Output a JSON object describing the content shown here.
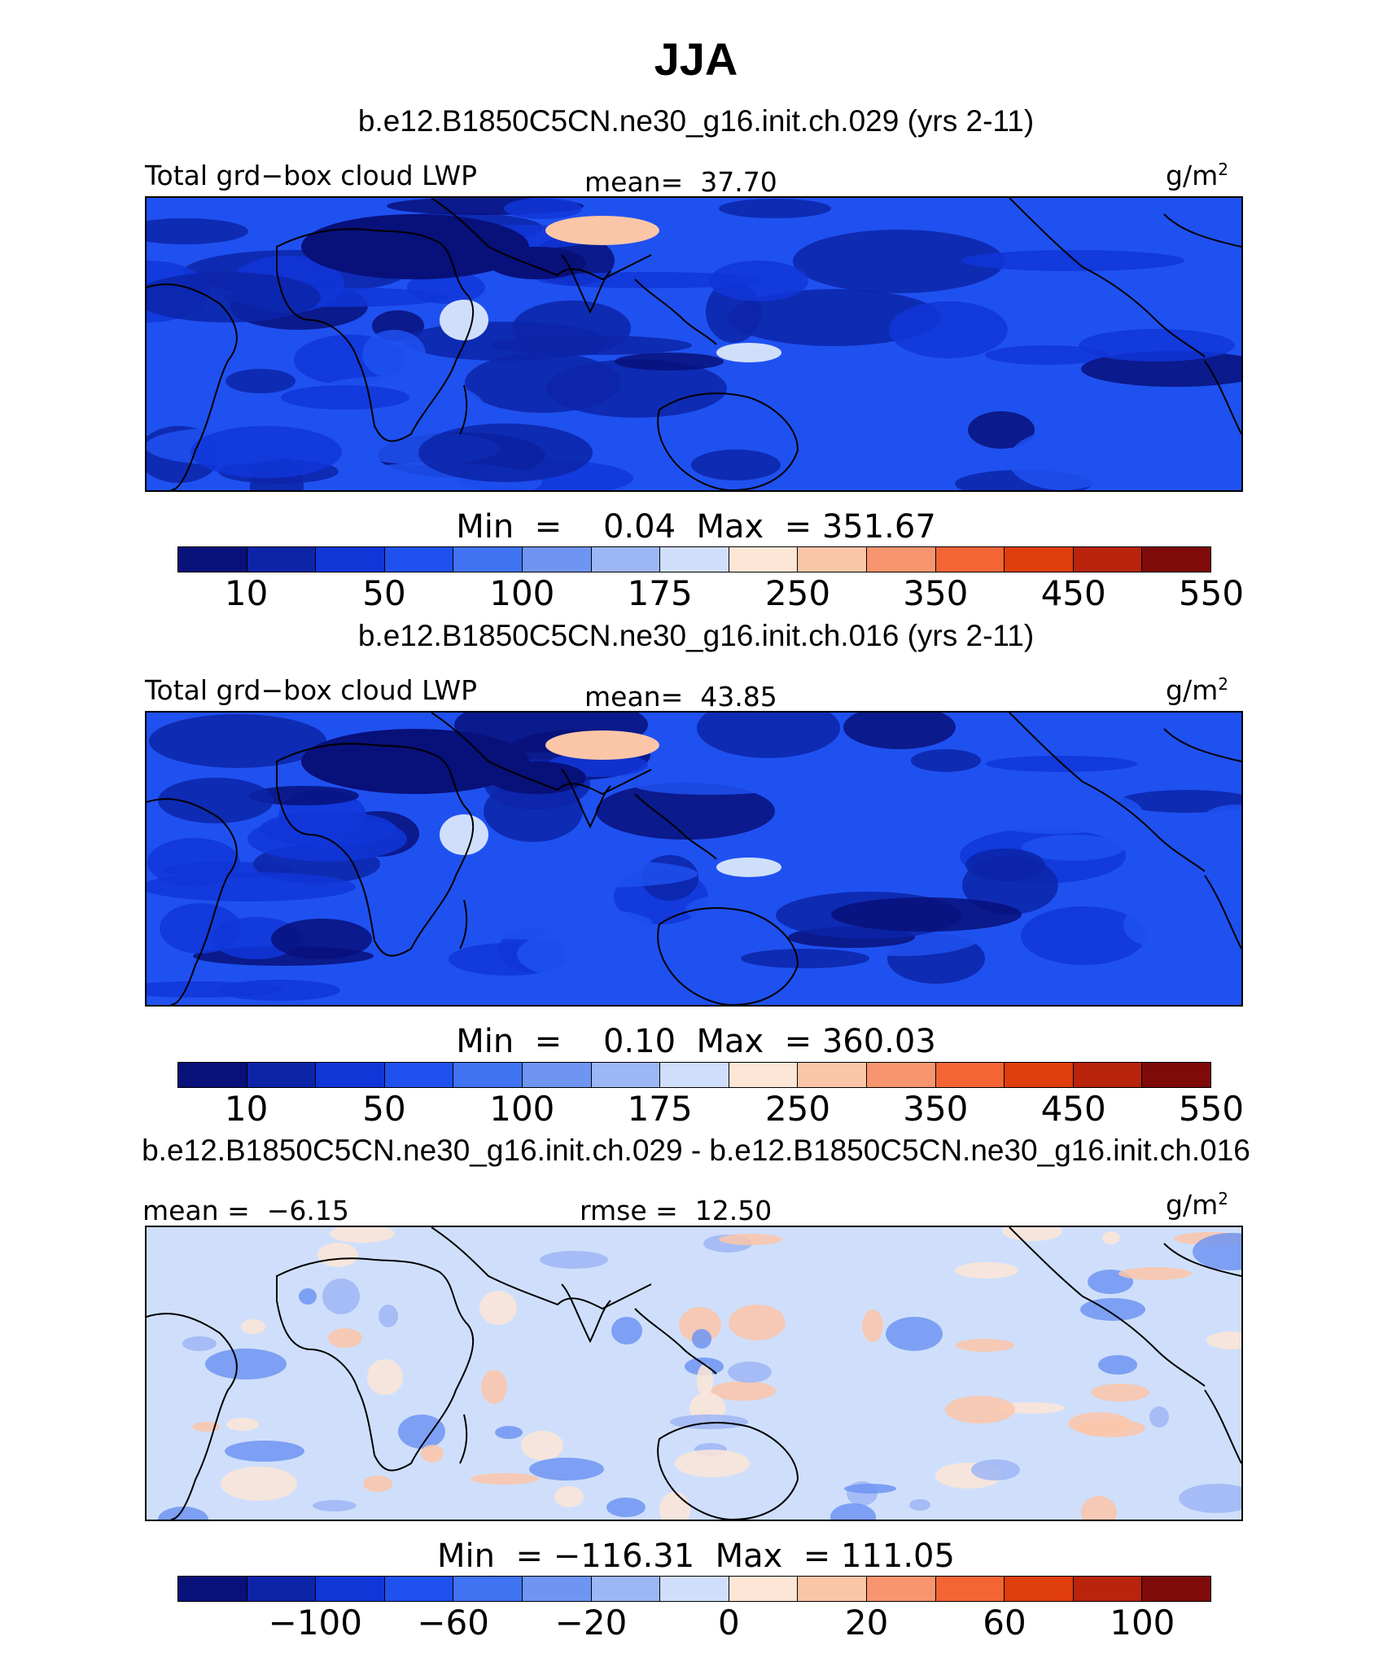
{
  "title": "JJA",
  "colors": {
    "full_field": [
      "#08107a",
      "#0c25a8",
      "#1136d8",
      "#1f51f0",
      "#3f73f2",
      "#6f95f2",
      "#9db6f5",
      "#cfdffb",
      "#fde6d6",
      "#fbc6a8",
      "#f8956e",
      "#f46536",
      "#e03e0a",
      "#b8240c",
      "#7e0a0a"
    ],
    "diff_field": [
      "#08107a",
      "#0c25a8",
      "#1136d8",
      "#1f51f0",
      "#3f73f2",
      "#6f95f2",
      "#9db6f5",
      "#cfdffb",
      "#fde6d6",
      "#fbc6a8",
      "#f8956e",
      "#f46536",
      "#e03e0a",
      "#b8240c",
      "#7e0a0a"
    ],
    "coastline": "#000000"
  },
  "panels": [
    {
      "case": "b.e12.B1850C5CN.ne30_g16.init.ch.029 (yrs 2-11)",
      "variable": "Total grd−box cloud LWP",
      "stat_label": "mean=",
      "stat_value": "37.70",
      "units": "g/m",
      "units_sup": "2",
      "min_label": "Min  =",
      "min_value": "0.04",
      "max_label": "Max  =",
      "max_value": "351.67",
      "colorbar_ticks": [
        "10",
        "50",
        "100",
        "175",
        "250",
        "350",
        "450",
        "550"
      ],
      "ocean_fill": "#1f51f0"
    },
    {
      "case": "b.e12.B1850C5CN.ne30_g16.init.ch.016 (yrs 2-11)",
      "variable": "Total grd−box cloud LWP",
      "stat_label": "mean=",
      "stat_value": "43.85",
      "units": "g/m",
      "units_sup": "2",
      "min_label": "Min  =",
      "min_value": "0.10",
      "max_label": "Max  =",
      "max_value": "360.03",
      "colorbar_ticks": [
        "10",
        "50",
        "100",
        "175",
        "250",
        "350",
        "450",
        "550"
      ],
      "ocean_fill": "#1f51f0"
    },
    {
      "case": "b.e12.B1850C5CN.ne30_g16.init.ch.029 - b.e12.B1850C5CN.ne30_g16.init.ch.016",
      "mean_label": "mean =",
      "mean_value": "−6.15",
      "rmse_label": "rmse =",
      "rmse_value": "12.50",
      "units": "g/m",
      "units_sup": "2",
      "min_label": "Min  =",
      "min_value": "−116.31",
      "max_label": "Max  =",
      "max_value": "111.05",
      "colorbar_ticks": [
        "−100",
        "−60",
        "−20",
        "0",
        "20",
        "60",
        "100"
      ],
      "ocean_fill": "#cfdffb"
    }
  ]
}
